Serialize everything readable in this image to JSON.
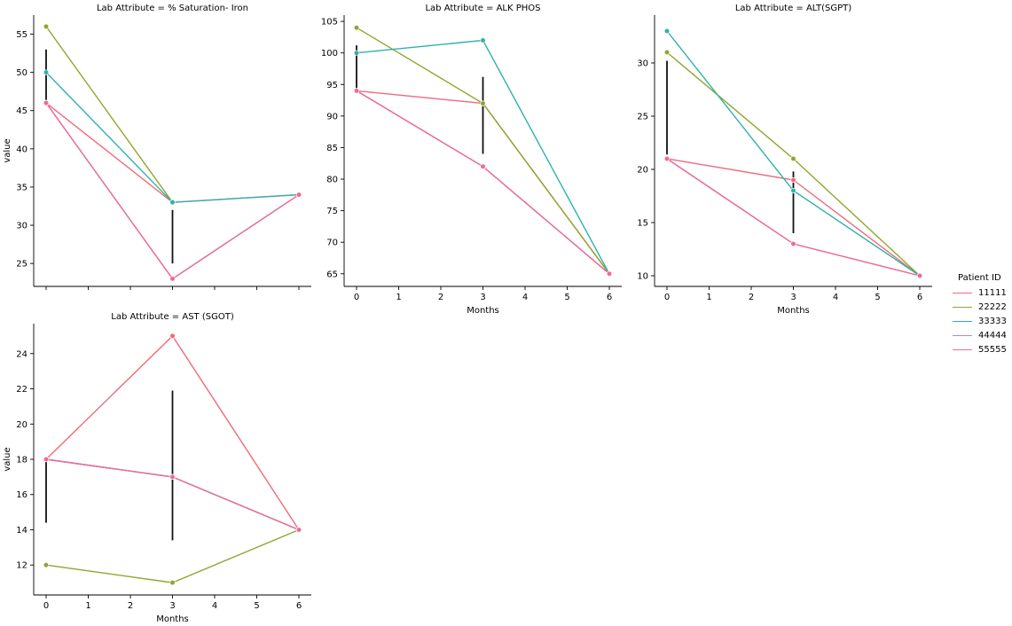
{
  "chart_data": {
    "type": "line",
    "facet_grid": true,
    "shared_x_ticks": [
      0,
      1,
      2,
      3,
      4,
      5,
      6
    ],
    "xlabel": "Months",
    "ylabel": "value",
    "legend": {
      "title": "Patient ID",
      "placement": "right",
      "entries": [
        {
          "name": "11111",
          "color": "#f0697b"
        },
        {
          "name": "22222",
          "color": "#91a52e"
        },
        {
          "name": "33333",
          "color": "#2fb2a9"
        },
        {
          "name": "44444",
          "color": "#a58dee"
        },
        {
          "name": "55555",
          "color": "#ef6b95"
        }
      ]
    },
    "panels": [
      {
        "title": "Lab Attribute = % Saturation- Iron",
        "ylim": [
          22,
          57.5
        ],
        "yticks": [
          25,
          30,
          35,
          40,
          45,
          50,
          55
        ],
        "show_x_ticklabels": false,
        "show_xlabel": false,
        "show_ylabel": true,
        "series": [
          {
            "name": "11111",
            "x": [
              0,
              3,
              6
            ],
            "y": [
              46,
              33,
              34
            ]
          },
          {
            "name": "22222",
            "x": [
              0,
              3
            ],
            "y": [
              56,
              33
            ]
          },
          {
            "name": "33333",
            "x": [
              0,
              3,
              6
            ],
            "y": [
              50,
              33,
              34
            ]
          },
          {
            "name": "44444",
            "x": [
              0,
              3,
              6
            ],
            "y": [
              46,
              23,
              34
            ]
          },
          {
            "name": "55555",
            "x": [
              0,
              3,
              6
            ],
            "y": [
              46,
              23,
              34
            ]
          }
        ],
        "error_bars": [
          {
            "x": 0,
            "low": 46.4,
            "high": 53
          },
          {
            "x": 3,
            "low": 25,
            "high": 32
          }
        ]
      },
      {
        "title": "Lab Attribute = ALK PHOS",
        "ylim": [
          63,
          106
        ],
        "yticks": [
          65,
          70,
          75,
          80,
          85,
          90,
          95,
          100,
          105
        ],
        "show_x_ticklabels": true,
        "show_xlabel": true,
        "show_ylabel": false,
        "series": [
          {
            "name": "11111",
            "x": [
              0,
              3,
              6
            ],
            "y": [
              94,
              92,
              65
            ]
          },
          {
            "name": "22222",
            "x": [
              0,
              3,
              6
            ],
            "y": [
              104,
              92,
              65
            ]
          },
          {
            "name": "33333",
            "x": [
              0,
              3,
              6
            ],
            "y": [
              100,
              102,
              65
            ]
          },
          {
            "name": "44444",
            "x": [
              0,
              3,
              6
            ],
            "y": [
              94,
              82,
              65
            ]
          },
          {
            "name": "55555",
            "x": [
              0,
              3,
              6
            ],
            "y": [
              94,
              82,
              65
            ]
          }
        ],
        "error_bars": [
          {
            "x": 0,
            "low": 94.4,
            "high": 101.2
          },
          {
            "x": 3,
            "low": 84,
            "high": 96.2
          }
        ]
      },
      {
        "title": "Lab Attribute = ALT(SGPT)",
        "ylim": [
          9,
          34.5
        ],
        "yticks": [
          10,
          15,
          20,
          25,
          30
        ],
        "show_x_ticklabels": true,
        "show_xlabel": true,
        "show_ylabel": false,
        "series": [
          {
            "name": "11111",
            "x": [
              0,
              3,
              6
            ],
            "y": [
              21,
              19,
              10
            ]
          },
          {
            "name": "22222",
            "x": [
              0,
              3,
              6
            ],
            "y": [
              31,
              21,
              10
            ]
          },
          {
            "name": "33333",
            "x": [
              0,
              3,
              6
            ],
            "y": [
              33,
              18,
              10
            ]
          },
          {
            "name": "44444",
            "x": [
              0,
              3,
              6
            ],
            "y": [
              21,
              13,
              10
            ]
          },
          {
            "name": "55555",
            "x": [
              0,
              3,
              6
            ],
            "y": [
              21,
              13,
              10
            ]
          }
        ],
        "error_bars": [
          {
            "x": 0,
            "low": 21.4,
            "high": 30.2
          },
          {
            "x": 3,
            "low": 14,
            "high": 19.8
          }
        ]
      },
      {
        "title": "Lab Attribute = AST (SGOT)",
        "ylim": [
          10.3,
          25.7
        ],
        "yticks": [
          12,
          14,
          16,
          18,
          20,
          22,
          24
        ],
        "show_x_ticklabels": true,
        "show_xlabel": true,
        "show_ylabel": true,
        "series": [
          {
            "name": "11111",
            "x": [
              0,
              3,
              6
            ],
            "y": [
              18,
              25,
              14
            ]
          },
          {
            "name": "22222",
            "x": [
              0,
              3,
              6
            ],
            "y": [
              12,
              11,
              14
            ]
          },
          {
            "name": "33333",
            "x": [
              0,
              3,
              6
            ],
            "y": [
              18,
              17,
              14
            ]
          },
          {
            "name": "44444",
            "x": [
              0,
              3,
              6
            ],
            "y": [
              18,
              17,
              14
            ]
          },
          {
            "name": "55555",
            "x": [
              0,
              3,
              6
            ],
            "y": [
              18,
              17,
              14
            ]
          }
        ],
        "error_bars": [
          {
            "x": 0,
            "low": 14.4,
            "high": 18
          },
          {
            "x": 3,
            "low": 13.4,
            "high": 21.9
          }
        ]
      }
    ]
  }
}
